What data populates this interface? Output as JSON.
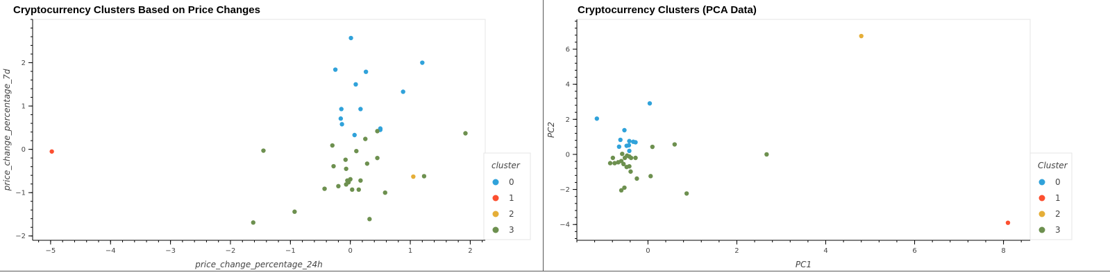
{
  "palette": [
    "#30a2da",
    "#fc4f30",
    "#e5ae38",
    "#6d904f"
  ],
  "chart_data": [
    {
      "type": "scatter",
      "title": "Cryptocurrency Clusters Based on Price Changes",
      "xlabel": "price_change_percentage_24h",
      "ylabel": "price_change_percentage_7d",
      "xlim": [
        -5.3,
        2.25
      ],
      "ylim": [
        -2.1,
        3.0
      ],
      "xticks": [
        -5,
        -4,
        -3,
        -2,
        -1,
        0,
        1,
        2
      ],
      "yticks": [
        -2,
        -1,
        0,
        1,
        2
      ],
      "grid": false,
      "legend": {
        "title": "cluster",
        "position": "right",
        "entries": [
          "0",
          "1",
          "2",
          "3"
        ]
      },
      "series": [
        {
          "name": "0",
          "color": "#30a2da",
          "points": [
            [
              0.01,
              2.57
            ],
            [
              1.2,
              2.0
            ],
            [
              -0.25,
              1.84
            ],
            [
              0.26,
              1.79
            ],
            [
              0.09,
              1.5
            ],
            [
              0.88,
              1.33
            ],
            [
              -0.15,
              0.93
            ],
            [
              0.17,
              0.93
            ],
            [
              -0.16,
              0.71
            ],
            [
              -0.14,
              0.58
            ],
            [
              0.5,
              0.48
            ],
            [
              0.5,
              0.45
            ],
            [
              0.07,
              0.33
            ]
          ]
        },
        {
          "name": "1",
          "color": "#fc4f30",
          "points": [
            [
              -4.98,
              -0.05
            ]
          ]
        },
        {
          "name": "2",
          "color": "#e5ae38",
          "points": [
            [
              1.05,
              -0.63
            ]
          ]
        },
        {
          "name": "3",
          "color": "#6d904f",
          "points": [
            [
              1.92,
              0.37
            ],
            [
              0.45,
              0.42
            ],
            [
              0.25,
              0.24
            ],
            [
              -1.45,
              -0.03
            ],
            [
              -0.3,
              0.09
            ],
            [
              0.1,
              -0.04
            ],
            [
              0.45,
              -0.2
            ],
            [
              -0.08,
              -0.24
            ],
            [
              0.28,
              -0.33
            ],
            [
              -0.28,
              -0.39
            ],
            [
              -0.07,
              -0.45
            ],
            [
              1.23,
              -0.62
            ],
            [
              -0.05,
              -0.72
            ],
            [
              0.0,
              -0.69
            ],
            [
              0.17,
              -0.72
            ],
            [
              -0.03,
              -0.76
            ],
            [
              -0.07,
              -0.81
            ],
            [
              -0.2,
              -0.85
            ],
            [
              -0.43,
              -0.91
            ],
            [
              0.03,
              -0.93
            ],
            [
              0.14,
              -0.93
            ],
            [
              0.58,
              -1.0
            ],
            [
              -0.93,
              -1.44
            ],
            [
              0.32,
              -1.61
            ],
            [
              -1.62,
              -1.69
            ]
          ]
        }
      ]
    },
    {
      "type": "scatter",
      "title": "Cryptocurrency Clusters (PCA Data)",
      "xlabel": "PC1",
      "ylabel": "PC2",
      "xlim": [
        -1.6,
        8.6
      ],
      "ylim": [
        -4.9,
        7.7
      ],
      "xticks": [
        0,
        2,
        4,
        6,
        8
      ],
      "yticks": [
        -4,
        -2,
        0,
        2,
        4,
        6
      ],
      "grid": false,
      "legend": {
        "title": "Cluster",
        "position": "right",
        "entries": [
          "0",
          "1",
          "2",
          "3"
        ]
      },
      "series": [
        {
          "name": "0",
          "color": "#30a2da",
          "points": [
            [
              -1.15,
              2.04
            ],
            [
              0.04,
              2.91
            ],
            [
              -0.53,
              1.38
            ],
            [
              -0.62,
              0.83
            ],
            [
              -0.42,
              0.76
            ],
            [
              -0.33,
              0.72
            ],
            [
              -0.28,
              0.69
            ],
            [
              -0.48,
              0.49
            ],
            [
              -0.43,
              0.52
            ],
            [
              -0.65,
              0.44
            ],
            [
              -0.42,
              0.2
            ]
          ]
        },
        {
          "name": "1",
          "color": "#fc4f30",
          "points": [
            [
              8.1,
              -3.9
            ]
          ]
        },
        {
          "name": "2",
          "color": "#e5ae38",
          "points": [
            [
              4.8,
              6.75
            ]
          ]
        },
        {
          "name": "3",
          "color": "#6d904f",
          "points": [
            [
              0.6,
              0.57
            ],
            [
              0.1,
              0.43
            ],
            [
              2.67,
              0.0
            ],
            [
              -0.58,
              0.03
            ],
            [
              -0.47,
              -0.07
            ],
            [
              -0.79,
              -0.2
            ],
            [
              -0.52,
              -0.2
            ],
            [
              -0.38,
              -0.2
            ],
            [
              -0.28,
              -0.2
            ],
            [
              -0.42,
              -0.12
            ],
            [
              -0.85,
              -0.5
            ],
            [
              -0.75,
              -0.5
            ],
            [
              -0.67,
              -0.45
            ],
            [
              -0.6,
              -0.38
            ],
            [
              -0.48,
              -0.72
            ],
            [
              -0.55,
              -0.55
            ],
            [
              -0.42,
              -0.68
            ],
            [
              -0.39,
              -0.98
            ],
            [
              0.06,
              -1.24
            ],
            [
              -0.25,
              -1.38
            ],
            [
              -0.53,
              -1.9
            ],
            [
              -0.6,
              -2.05
            ],
            [
              0.87,
              -2.23
            ]
          ]
        }
      ]
    }
  ]
}
